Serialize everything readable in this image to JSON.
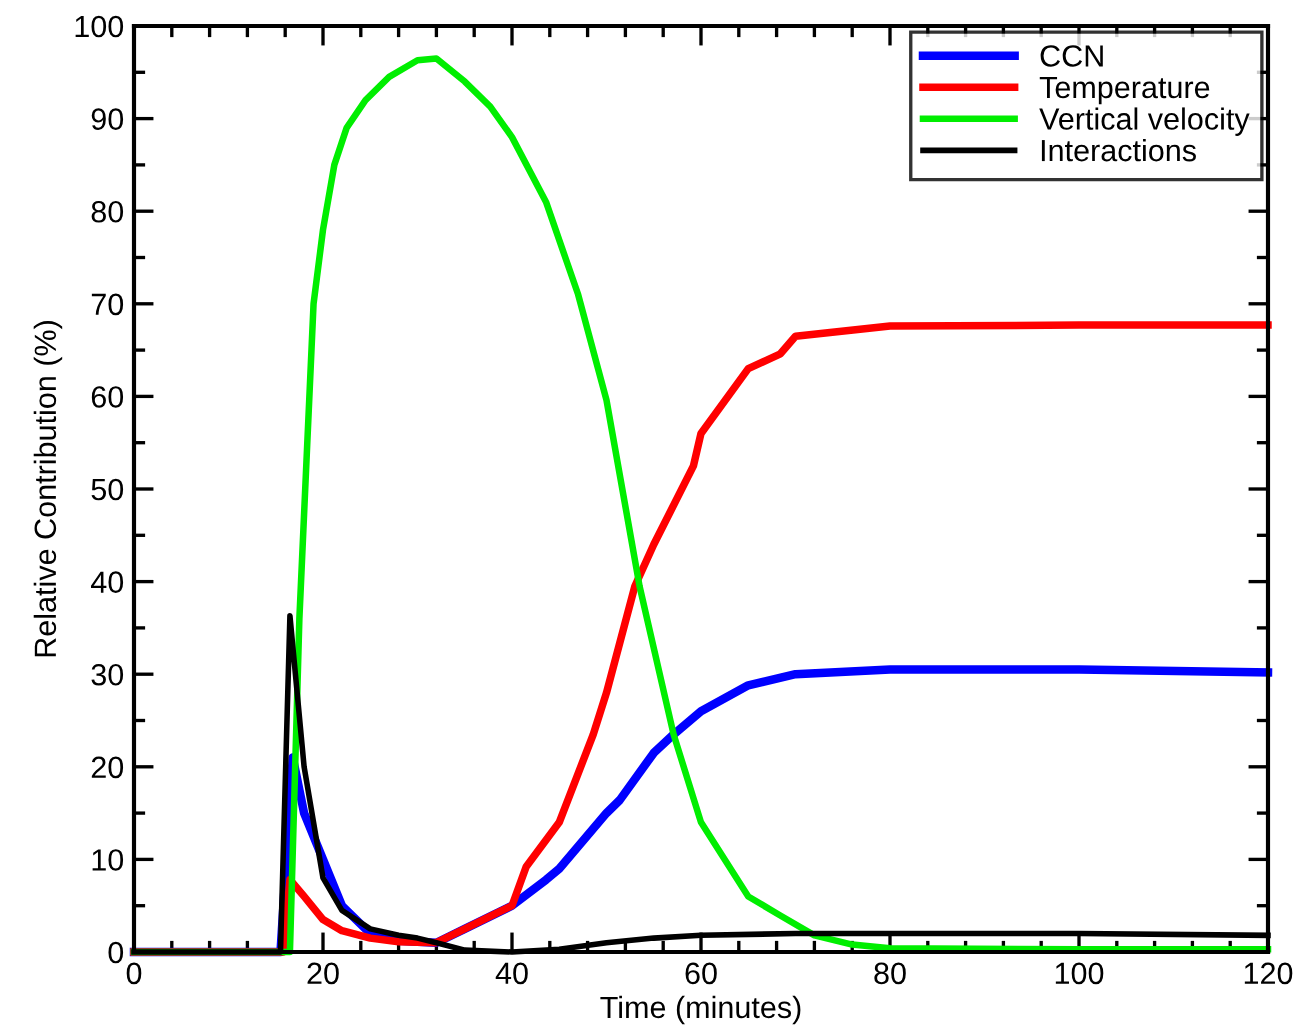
{
  "chart_data": {
    "type": "line",
    "xlabel": "Time (minutes)",
    "ylabel": "Relative Contribution (%)",
    "xlim": [
      0,
      120
    ],
    "ylim": [
      0,
      100
    ],
    "xticks": [
      0,
      20,
      40,
      60,
      80,
      100,
      120
    ],
    "yticks": [
      0,
      10,
      20,
      30,
      40,
      50,
      60,
      70,
      80,
      90,
      100
    ],
    "legend": "top right",
    "grid": false,
    "marker": "none",
    "line_style": "solid",
    "series": [
      {
        "name": "CCN",
        "color": "#0000ff",
        "x": [
          0,
          15.5,
          16.8,
          18,
          20,
          22,
          25,
          28,
          32,
          35,
          40,
          43.6,
          45,
          50,
          51.4,
          55,
          57.1,
          60,
          65,
          70,
          80,
          100,
          120
        ],
        "values": [
          0,
          0,
          21,
          15,
          10,
          5,
          2,
          1.2,
          1,
          2.5,
          5,
          7.8,
          9,
          15,
          16.4,
          21.5,
          23.5,
          26,
          28.8,
          30,
          30.5,
          30.5,
          30.2
        ]
      },
      {
        "name": "Temperature",
        "color": "#ff0000",
        "x": [
          0,
          15.8,
          16.5,
          18,
          20,
          22,
          25,
          28,
          32,
          35,
          38,
          40,
          41.5,
          45,
          48.6,
          50,
          53,
          55,
          59.2,
          60,
          65,
          68.4,
          70,
          80,
          100,
          120
        ],
        "values": [
          0,
          0,
          7.8,
          6,
          3.5,
          2.3,
          1.5,
          1.1,
          1,
          2.5,
          4,
          5,
          9.2,
          14,
          23.5,
          28,
          39.5,
          44,
          52.5,
          56,
          63,
          64.6,
          66.5,
          67.6,
          67.7,
          67.7
        ]
      },
      {
        "name": "Vertical velocity",
        "color": "#00ee00",
        "x": [
          0,
          16.5,
          17.5,
          19,
          20,
          21.2,
          22.5,
          24.5,
          27,
          30,
          32,
          35,
          37.7,
          40,
          43.6,
          47,
          50,
          53.5,
          57.1,
          60,
          65,
          68.3,
          72,
          76,
          80,
          100,
          120
        ],
        "values": [
          0,
          0,
          36,
          70,
          78,
          85,
          89,
          92,
          94.5,
          96.3,
          96.5,
          94,
          91.3,
          88,
          81,
          71,
          59.6,
          39.5,
          23.5,
          14,
          6,
          4,
          1.8,
          0.8,
          0.4,
          0.3,
          0.3
        ]
      },
      {
        "name": "Interactions",
        "color": "#000000",
        "x": [
          0,
          15.5,
          16.5,
          18,
          20,
          22,
          25,
          28,
          30,
          32,
          35,
          40,
          45,
          50,
          55,
          60,
          70,
          80,
          100,
          120
        ],
        "values": [
          0,
          0,
          36.3,
          20,
          8,
          4.5,
          2.5,
          1.8,
          1.5,
          1,
          0.2,
          0,
          0.3,
          1,
          1.5,
          1.8,
          2,
          2,
          2,
          1.8
        ]
      }
    ]
  }
}
